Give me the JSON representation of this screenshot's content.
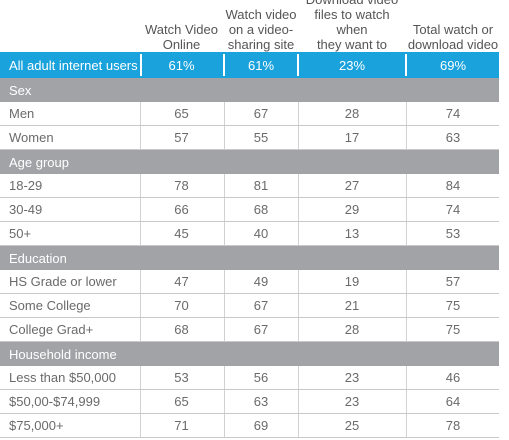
{
  "columns": [
    [
      "Watch Video",
      "Online"
    ],
    [
      "Watch video",
      "on a video-",
      "sharing site"
    ],
    [
      "Download video",
      "files to watch when",
      "they want to"
    ],
    [
      "Total watch or",
      "download video"
    ]
  ],
  "total_row": {
    "label": "All adult internet users",
    "values": [
      "61%",
      "61%",
      "23%",
      "69%"
    ]
  },
  "sections": [
    {
      "title": "Sex",
      "rows": [
        {
          "label": "Men",
          "values": [
            "65",
            "67",
            "28",
            "74"
          ]
        },
        {
          "label": "Women",
          "values": [
            "57",
            "55",
            "17",
            "63"
          ]
        }
      ]
    },
    {
      "title": "Age group",
      "rows": [
        {
          "label": "18-29",
          "values": [
            "78",
            "81",
            "27",
            "84"
          ]
        },
        {
          "label": "30-49",
          "values": [
            "66",
            "68",
            "29",
            "74"
          ]
        },
        {
          "label": "50+",
          "values": [
            "45",
            "40",
            "13",
            "53"
          ]
        }
      ]
    },
    {
      "title": "Education",
      "rows": [
        {
          "label": "HS Grade or lower",
          "values": [
            "47",
            "49",
            "19",
            "57"
          ]
        },
        {
          "label": "Some College",
          "values": [
            "70",
            "67",
            "21",
            "75"
          ]
        },
        {
          "label": "College Grad+",
          "values": [
            "68",
            "67",
            "28",
            "75"
          ]
        }
      ]
    },
    {
      "title": "Household income",
      "rows": [
        {
          "label": "Less than $50,000",
          "values": [
            "53",
            "56",
            "23",
            "46"
          ]
        },
        {
          "label": "$50,00-$74,999",
          "values": [
            "65",
            "63",
            "23",
            "64"
          ]
        },
        {
          "label": "$75,000+",
          "values": [
            "71",
            "69",
            "25",
            "78"
          ]
        }
      ]
    }
  ],
  "colors": {
    "total_bg": "#1aa2dc",
    "section_bg": "#a2a3a6",
    "text": "#555555"
  }
}
